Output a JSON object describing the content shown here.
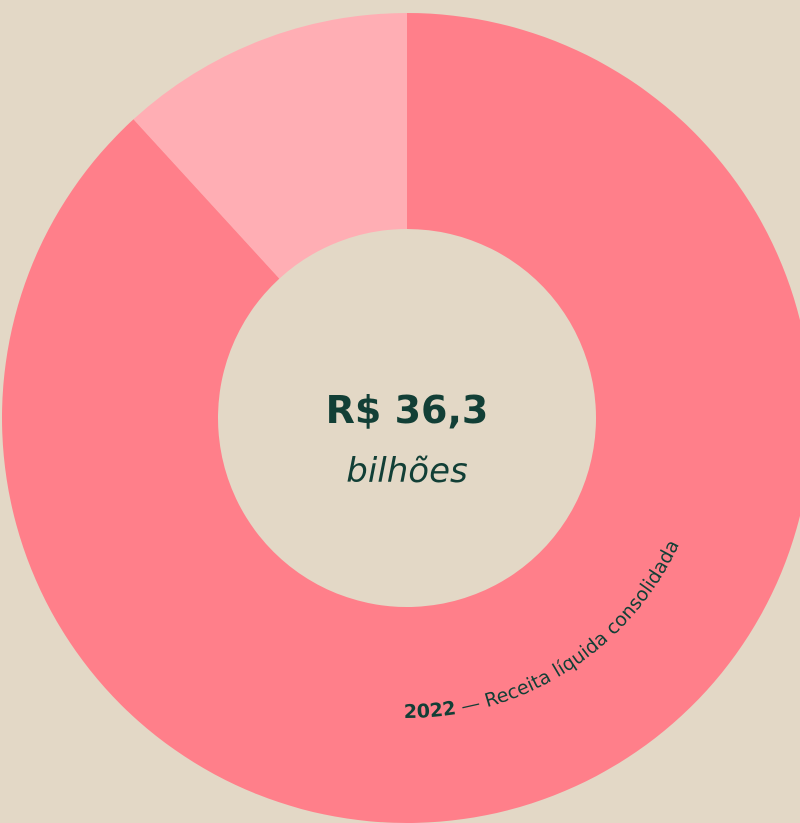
{
  "chart_data": {
    "type": "donut",
    "values": [
      88.2,
      11.8
    ],
    "colors": [
      "#ff7f8a",
      "#ffaeb4"
    ],
    "center_value": "R$ 36,3",
    "center_unit": "bilhões",
    "arc_label_year": "2022",
    "arc_label_text": " — Receita líquida consolidada"
  }
}
